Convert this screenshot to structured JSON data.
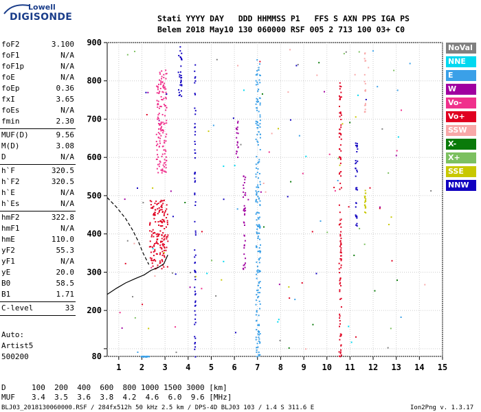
{
  "logo": {
    "top": "Lowell",
    "main": "DIGISONDE"
  },
  "header": {
    "row1": "Stati YYYY DAY   DDD HHMMSS P1   FFS S AXN PPS IGA PS",
    "row2": "Belem 2018 May10 130 060000 RSF 005 2 713 100 03+ C0"
  },
  "parameters": [
    {
      "group": [
        {
          "name": "foF2",
          "value": "3.100"
        },
        {
          "name": "foF1",
          "value": "N/A"
        },
        {
          "name": "foF1p",
          "value": "N/A"
        },
        {
          "name": "foE",
          "value": "N/A"
        },
        {
          "name": "foEp",
          "value": "0.36"
        },
        {
          "name": "fxI",
          "value": "3.65"
        },
        {
          "name": "foEs",
          "value": "N/A"
        },
        {
          "name": "fmin",
          "value": "2.30"
        }
      ]
    },
    {
      "group": [
        {
          "name": "MUF(D)",
          "value": "9.56"
        },
        {
          "name": "M(D)",
          "value": "3.08"
        },
        {
          "name": "D",
          "value": "N/A"
        }
      ]
    },
    {
      "group": [
        {
          "name": "h`F",
          "value": "320.5"
        },
        {
          "name": "h`F2",
          "value": "320.5"
        },
        {
          "name": "h`E",
          "value": "N/A"
        },
        {
          "name": "h`Es",
          "value": "N/A"
        }
      ]
    },
    {
      "group": [
        {
          "name": "hmF2",
          "value": "322.8"
        },
        {
          "name": "hmF1",
          "value": "N/A"
        },
        {
          "name": "hmE",
          "value": "110.0"
        },
        {
          "name": "yF2",
          "value": "55.3"
        },
        {
          "name": "yF1",
          "value": "N/A"
        },
        {
          "name": "yE",
          "value": "20.0"
        },
        {
          "name": "B0",
          "value": "58.5"
        },
        {
          "name": "B1",
          "value": "1.71"
        }
      ]
    },
    {
      "group": [
        {
          "name": "C-level",
          "value": "33"
        }
      ]
    }
  ],
  "auto": {
    "line1": "Auto:",
    "line2": "Artist5",
    "line3": "500200"
  },
  "legend": [
    {
      "label": "NoVal",
      "color": "#808080"
    },
    {
      "label": "NNE",
      "color": "#00d8f0"
    },
    {
      "label": "E",
      "color": "#3aa0e8"
    },
    {
      "label": "W",
      "color": "#a000a0"
    },
    {
      "label": "Vo-",
      "color": "#f0308c"
    },
    {
      "label": "Vo+",
      "color": "#e00020"
    },
    {
      "label": "SSW",
      "color": "#f8a8a8"
    },
    {
      "label": "X-",
      "color": "#0a7a0a"
    },
    {
      "label": "X+",
      "color": "#7cc060"
    },
    {
      "label": "SSE",
      "color": "#c8c800"
    },
    {
      "label": "NNW",
      "color": "#1000c0"
    }
  ],
  "footer": {
    "d_label": "D",
    "d_values": "100  200  400  600  800 1000 1500 3000 [km]",
    "muf_label": "MUF",
    "muf_values": "3.4  3.5  3.6  3.8  4.2  4.6  6.0  9.6 [MHz]",
    "file_info": "BLJ03_2018130060000.RSF / 284fx512h 50 kHz 2.5 km / DPS-4D BLJ03 103 / 1.4 S 311.6 E",
    "version": "Ion2Png v. 1.3.17"
  },
  "chart_data": {
    "type": "scatter",
    "title": "",
    "xlabel": "",
    "ylabel": "",
    "xlim": [
      0.5,
      15
    ],
    "ylim": [
      80,
      900
    ],
    "x_ticks": [
      1,
      2,
      3,
      4,
      5,
      6,
      7,
      8,
      9,
      10,
      11,
      12,
      13,
      14,
      15
    ],
    "y_ticks": [
      80,
      100,
      200,
      300,
      400,
      500,
      600,
      700,
      800,
      900
    ],
    "y_tick_labels": [
      "80",
      "",
      "200",
      "300",
      "400",
      "500",
      "600",
      "700",
      "800",
      "900"
    ],
    "grid": true,
    "traces": [
      {
        "name": "x_trace",
        "style": "dashed",
        "x": [
          0.5,
          0.9,
          1.3,
          1.6,
          1.85,
          2.05,
          2.3
        ],
        "y": [
          495,
          470,
          440,
          410,
          380,
          350,
          320
        ]
      },
      {
        "name": "profile",
        "style": "solid",
        "x": [
          0.5,
          0.9,
          1.3,
          1.7,
          2.1,
          2.4,
          2.7,
          2.95,
          3.12
        ],
        "y": [
          242,
          258,
          272,
          283,
          293,
          305,
          312,
          322,
          345
        ]
      }
    ],
    "echo_clusters": [
      {
        "direction": "Vo+",
        "x": [
          2.3,
          3.1
        ],
        "y": [
          310,
          490
        ]
      },
      {
        "direction": "Vo-",
        "x": [
          2.6,
          3.05
        ],
        "y": [
          560,
          830
        ]
      },
      {
        "direction": "NNW",
        "x": [
          3.55,
          3.7
        ],
        "y": [
          760,
          895
        ]
      },
      {
        "direction": "NNW",
        "x": [
          4.25,
          4.3
        ],
        "y": [
          80,
          895
        ]
      },
      {
        "direction": "W",
        "x": [
          6.05,
          6.15
        ],
        "y": [
          600,
          700
        ]
      },
      {
        "direction": "W",
        "x": [
          6.35,
          6.45
        ],
        "y": [
          300,
          560
        ]
      },
      {
        "direction": "E",
        "x": [
          6.9,
          7.1
        ],
        "y": [
          80,
          860
        ]
      },
      {
        "direction": "Vo+",
        "x": [
          10.5,
          10.6
        ],
        "y": [
          80,
          860
        ]
      },
      {
        "direction": "NNW",
        "x": [
          11.2,
          11.3
        ],
        "y": [
          420,
          640
        ]
      },
      {
        "direction": "SSW",
        "x": [
          11.6,
          11.65
        ],
        "y": [
          720,
          880
        ]
      },
      {
        "direction": "SSE",
        "x": [
          11.6,
          11.65
        ],
        "y": [
          450,
          520
        ]
      },
      {
        "direction": "E",
        "x": [
          1.9,
          2.3
        ],
        "y": [
          80,
          82
        ]
      }
    ]
  }
}
